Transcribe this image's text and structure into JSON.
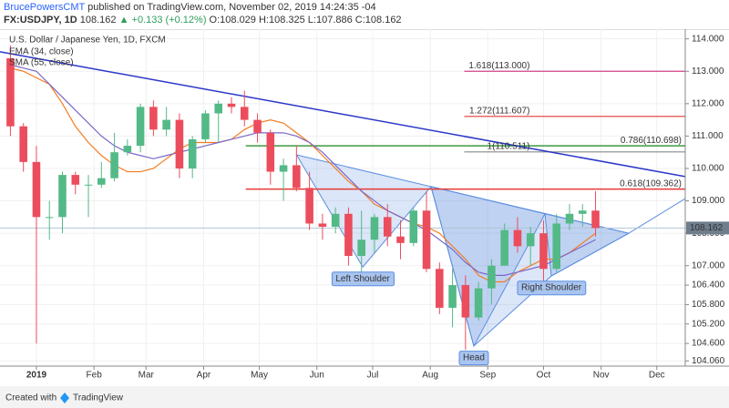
{
  "header": {
    "author": "BrucePowersCMT",
    "published": "published on TradingView.com, November 02, 2019 14:24:35 -04",
    "symbol": "FX:USDJPY, 1D",
    "last": "108.162",
    "change": "▲ +0.133 (+0.12%)",
    "ohlc": "O:108.029 H:108.325 L:107.886 C:108.162"
  },
  "footer": {
    "created": "Created with",
    "brand": "TradingView"
  },
  "chart_data": {
    "type": "candlestick",
    "title": "U.S. Dollar / Japanese Yen, 1D, FXCM",
    "up_color": "#53b987",
    "down_color": "#eb4d5c",
    "x": [
      -2,
      -1,
      0,
      1,
      2,
      3,
      4,
      5,
      6,
      7,
      8,
      9,
      10,
      11,
      12,
      13,
      14,
      15,
      16,
      17,
      18,
      19,
      20,
      21,
      22,
      23,
      24,
      25,
      26,
      27,
      28,
      29,
      30,
      31,
      32,
      33,
      34,
      35,
      36,
      37,
      38,
      39,
      40,
      41,
      42,
      43
    ],
    "open": [
      113.4,
      111.3,
      110.2,
      108.5,
      108.5,
      109.8,
      109.5,
      109.5,
      109.7,
      110.5,
      110.7,
      111.9,
      111.2,
      111.5,
      110.0,
      110.9,
      111.7,
      112.0,
      111.9,
      111.5,
      111.1,
      109.9,
      110.1,
      109.4,
      108.3,
      108.2,
      108.6,
      107.3,
      107.8,
      108.5,
      107.9,
      107.7,
      108.7,
      106.9,
      105.7,
      106.4,
      105.4,
      106.3,
      107.0,
      108.1,
      107.6,
      108.0,
      106.9,
      108.3,
      108.6,
      108.7
    ],
    "high": [
      113.8,
      111.4,
      110.7,
      109.0,
      109.9,
      109.9,
      109.8,
      110.2,
      111.1,
      110.9,
      112.0,
      112.1,
      111.9,
      111.7,
      111.0,
      111.8,
      112.1,
      112.2,
      112.4,
      111.7,
      111.2,
      110.3,
      110.7,
      109.9,
      108.6,
      108.8,
      108.8,
      108.7,
      108.6,
      108.9,
      108.4,
      108.8,
      109.3,
      107.1,
      106.9,
      106.7,
      106.5,
      107.2,
      108.3,
      108.5,
      108.2,
      108.4,
      108.6,
      108.9,
      108.9,
      109.3
    ],
    "low": [
      111.0,
      109.9,
      104.6,
      107.8,
      108.0,
      109.2,
      108.5,
      109.4,
      109.6,
      110.4,
      110.5,
      111.0,
      111.0,
      109.7,
      109.7,
      110.8,
      110.8,
      111.7,
      111.3,
      110.8,
      109.5,
      109.0,
      109.3,
      108.1,
      107.8,
      108.0,
      107.0,
      106.8,
      107.4,
      107.6,
      107.2,
      107.6,
      106.8,
      105.5,
      105.1,
      104.4,
      105.3,
      105.8,
      107.0,
      107.4,
      107.0,
      106.5,
      106.8,
      108.1,
      108.2,
      107.9
    ],
    "close": [
      111.3,
      110.2,
      108.5,
      108.5,
      109.8,
      109.5,
      109.5,
      109.7,
      110.5,
      110.7,
      111.9,
      111.2,
      111.5,
      110.0,
      110.9,
      111.7,
      112.0,
      111.9,
      111.5,
      111.1,
      109.9,
      110.1,
      109.4,
      108.3,
      108.2,
      108.6,
      107.3,
      107.8,
      108.5,
      107.9,
      107.7,
      108.7,
      106.9,
      105.7,
      106.4,
      105.4,
      106.3,
      107.0,
      108.1,
      107.6,
      108.0,
      106.9,
      108.3,
      108.6,
      108.7,
      108.162
    ],
    "series": [
      {
        "name": "EMA (34, close)",
        "color": "#f57c1f",
        "values": [
          113.1,
          113.0,
          112.8,
          112.6,
          112.0,
          111.3,
          110.8,
          110.4,
          110.1,
          109.9,
          109.9,
          110.0,
          110.3,
          110.6,
          110.8,
          110.8,
          110.8,
          110.9,
          111.2,
          111.4,
          111.5,
          111.4,
          111.1,
          110.8,
          110.4,
          110.0,
          109.6,
          109.3,
          108.9,
          108.7,
          108.5,
          108.3,
          108.2,
          108.0,
          107.6,
          107.2,
          106.7,
          106.5,
          106.5,
          106.8,
          107.0,
          107.2,
          107.2,
          107.4,
          107.7,
          108.0
        ]
      },
      {
        "name": "SMA (55, close)",
        "color": "#7b68c8",
        "values": [
          113.2,
          113.1,
          113.0,
          112.6,
          112.2,
          111.8,
          111.4,
          111.0,
          110.7,
          110.5,
          110.4,
          110.3,
          110.4,
          110.5,
          110.6,
          110.7,
          110.8,
          110.9,
          111.0,
          111.1,
          111.1,
          111.1,
          111.0,
          110.8,
          110.5,
          110.1,
          109.7,
          109.3,
          109.0,
          108.7,
          108.5,
          108.3,
          108.1,
          107.8,
          107.5,
          107.1,
          106.8,
          106.7,
          106.7,
          106.8,
          106.9,
          107.0,
          107.2,
          107.4,
          107.6,
          107.8
        ]
      }
    ],
    "last": 108.162,
    "xlim": [
      -2.8,
      49.9
    ],
    "xticks": [
      {
        "value": 0,
        "label": "2019"
      },
      {
        "value": 4.43,
        "label": "Feb"
      },
      {
        "value": 8.43,
        "label": "Mar"
      },
      {
        "value": 12.86,
        "label": "Apr"
      },
      {
        "value": 17.14,
        "label": "May"
      },
      {
        "value": 21.57,
        "label": "Jun"
      },
      {
        "value": 25.86,
        "label": "Jul"
      },
      {
        "value": 30.29,
        "label": "Aug"
      },
      {
        "value": 34.71,
        "label": "Sep"
      },
      {
        "value": 39,
        "label": "Oct"
      },
      {
        "value": 43.43,
        "label": "Nov"
      },
      {
        "value": 47.71,
        "label": "Dec"
      }
    ],
    "ylim": [
      103.9,
      114.3
    ],
    "yticks": [
      {
        "value": 114,
        "label": "114.000"
      },
      {
        "value": 113,
        "label": "113.000"
      },
      {
        "value": 112,
        "label": "112.000"
      },
      {
        "value": 111,
        "label": "111.000"
      },
      {
        "value": 110,
        "label": "110.000"
      },
      {
        "value": 109,
        "label": "109.000"
      },
      {
        "value": 108,
        "label": "108.000"
      },
      {
        "value": 107,
        "label": "107.000"
      },
      {
        "value": 106.4,
        "label": "106.400"
      },
      {
        "value": 105.8,
        "label": "105.800"
      },
      {
        "value": 105.2,
        "label": "105.200"
      },
      {
        "value": 104.6,
        "label": "104.600"
      },
      {
        "value": 104.06,
        "label": "104.060"
      }
    ],
    "fib_levels": [
      {
        "label": "1.618(113.000)",
        "value": 113.0,
        "start": 32.9,
        "color": "#d0428a"
      },
      {
        "label": "1.272(111.607)",
        "value": 111.607,
        "start": 32.9,
        "color": "#e53935"
      },
      {
        "label": "0.786(110.698)",
        "value": 110.698,
        "start": 16.1,
        "color": "#3d9a40"
      },
      {
        "label": "1(110.511)",
        "value": 110.511,
        "start": 32.9,
        "color": "#888888"
      },
      {
        "label": "0.618(109.362)",
        "value": 109.362,
        "start": 16.1,
        "color": "#e53935"
      }
    ],
    "trendline": {
      "color": "#2a36c8",
      "x": [
        -2.8,
        49.9
      ],
      "y": [
        113.6,
        109.75
      ]
    },
    "pattern": {
      "color": "#5b8ee0",
      "shapes": [
        {
          "x": [
            20.0,
            30.35,
            25.1
          ],
          "y": [
            110.42,
            109.44,
            106.96
          ]
        },
        {
          "x": [
            30.35,
            39.11,
            33.64
          ],
          "y": [
            109.44,
            108.6,
            104.52
          ]
        },
        {
          "x": [
            30.35,
            45.55,
            39.6,
            33.64
          ],
          "y": [
            109.44,
            108.0,
            106.68,
            104.52
          ]
        },
        {
          "x": [
            39.11,
            45.55,
            39.6
          ],
          "y": [
            108.6,
            108.0,
            106.68
          ]
        }
      ],
      "extension": {
        "x": [
          45.55,
          49.9
        ],
        "y": [
          108.0,
          109.07
        ]
      },
      "annotations": [
        {
          "text": "Left Shoulder",
          "x": 25.1,
          "y": 106.96
        },
        {
          "text": "Head",
          "x": 33.64,
          "y": 104.52
        },
        {
          "text": "Right Shoulder",
          "x": 39.6,
          "y": 106.68
        }
      ]
    }
  }
}
